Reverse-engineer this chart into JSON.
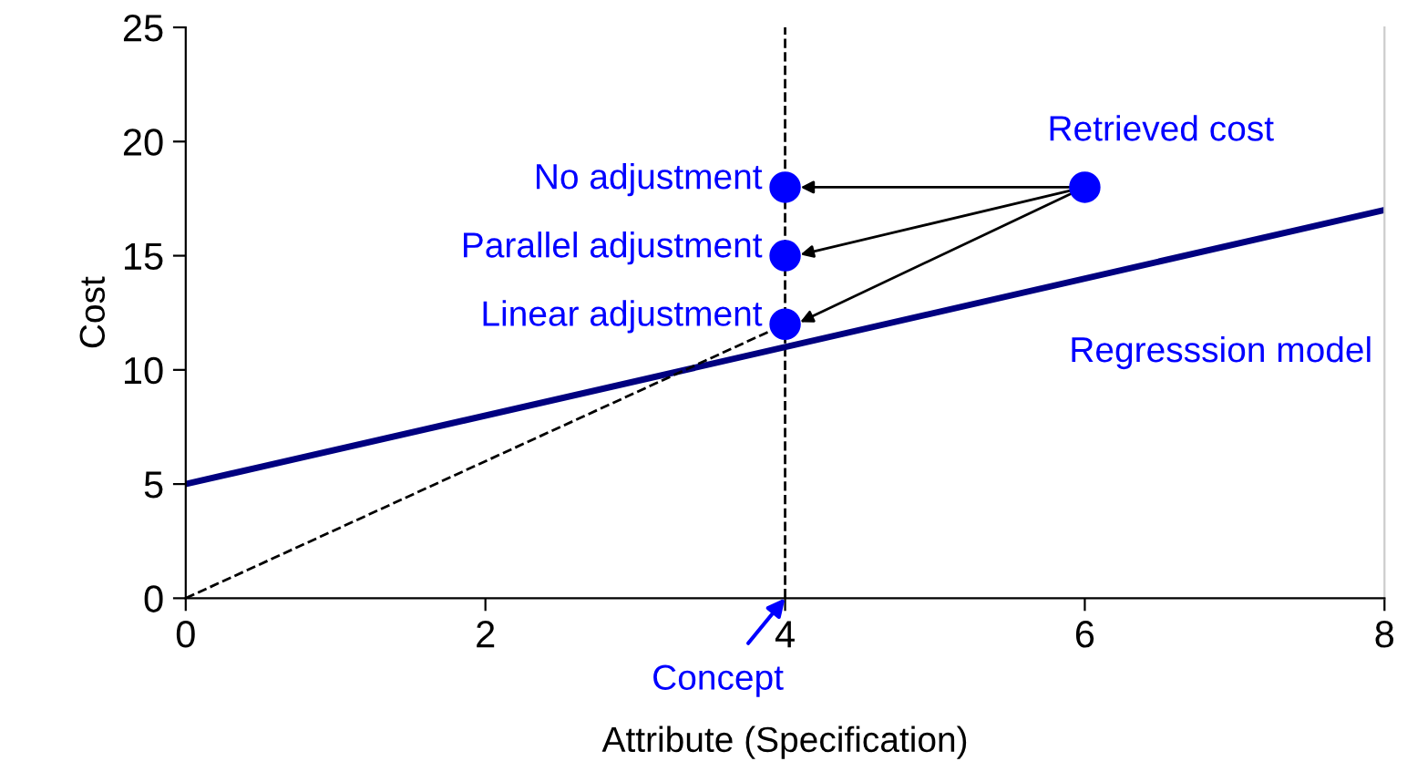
{
  "chart_data": {
    "type": "scatter",
    "xlabel": "Attribute (Specification)",
    "ylabel": "Cost",
    "xlim": [
      0,
      8
    ],
    "ylim": [
      0,
      25
    ],
    "xticks": [
      0,
      2,
      4,
      6,
      8
    ],
    "yticks": [
      0,
      5,
      10,
      15,
      20,
      25
    ],
    "grid": false,
    "legend": false,
    "series": [
      {
        "type": "line",
        "color": "#000080",
        "x": [
          0,
          8
        ],
        "values": [
          5,
          17
        ],
        "line_style": "solid"
      },
      {
        "type": "line",
        "color": "#000000",
        "x": [
          0,
          4
        ],
        "values": [
          0,
          12
        ],
        "line_style": "dashed"
      },
      {
        "color": "#0000ff",
        "x": [
          4,
          4,
          4
        ],
        "values": [
          18,
          15,
          12
        ],
        "marker": "circle"
      },
      {
        "color": "#0000ff",
        "x": [
          6
        ],
        "values": [
          18
        ],
        "marker": "circle"
      }
    ],
    "ref_lines": [
      {
        "axis": "x",
        "value": 4,
        "color": "#000000",
        "line_style": "dashed"
      }
    ],
    "annotations": [
      "No adjustment",
      "Parallel adjustment",
      "Linear adjustment",
      "Retrieved cost",
      "Regresssion model",
      "Concept"
    ]
  }
}
